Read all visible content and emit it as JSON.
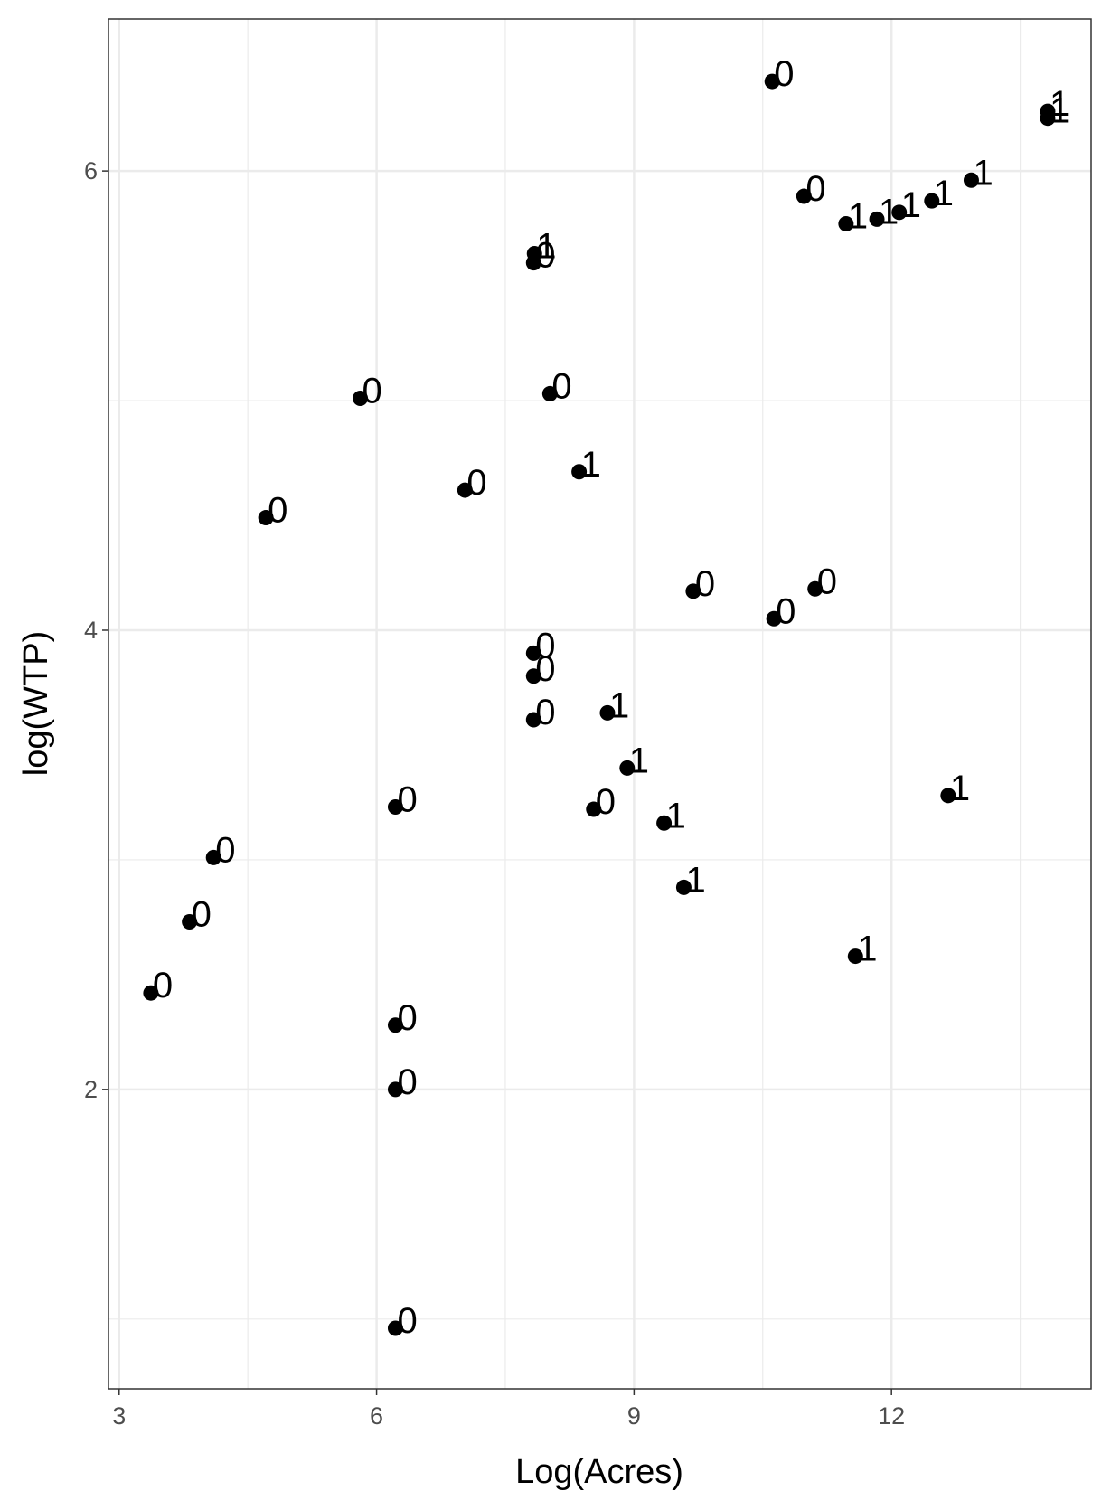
{
  "chart_data": {
    "type": "scatter",
    "x_label": "Log(Acres)",
    "y_label": "log(WTP)",
    "x": [
      10.61,
      13.82,
      13.82,
      12.93,
      10.98,
      11.47,
      11.83,
      12.09,
      12.47,
      7.84,
      7.83,
      5.81,
      8.02,
      8.36,
      7.03,
      4.71,
      9.69,
      11.11,
      10.63,
      7.83,
      7.83,
      7.83,
      8.69,
      8.92,
      6.22,
      8.53,
      9.35,
      12.66,
      4.1,
      9.58,
      3.82,
      11.58,
      3.37,
      6.22,
      6.22,
      6.22
    ],
    "values": [
      6.39,
      6.26,
      6.23,
      5.96,
      5.89,
      5.77,
      5.79,
      5.82,
      5.87,
      5.64,
      5.6,
      5.01,
      5.03,
      4.69,
      4.61,
      4.49,
      4.17,
      4.18,
      4.05,
      3.9,
      3.8,
      3.61,
      3.64,
      3.4,
      3.23,
      3.22,
      3.16,
      3.28,
      3.01,
      2.88,
      2.73,
      2.58,
      2.42,
      2.28,
      2.0,
      0.96
    ],
    "point_labels": [
      "0",
      "1",
      "1",
      "1",
      "0",
      "1",
      "1",
      "1",
      "1",
      "1",
      "0",
      "0",
      "0",
      "1",
      "0",
      "0",
      "0",
      "0",
      "0",
      "0",
      "0",
      "0",
      "1",
      "1",
      "0",
      "0",
      "1",
      "1",
      "0",
      "1",
      "0",
      "1",
      "0",
      "0",
      "0",
      "0"
    ],
    "color": "#000000",
    "xlim": [
      2.876,
      14.326
    ],
    "xticks": [
      3,
      6,
      9,
      12
    ],
    "ylim": [
      0.696,
      6.662
    ],
    "yticks": [
      2,
      4,
      6
    ],
    "grid": true
  }
}
